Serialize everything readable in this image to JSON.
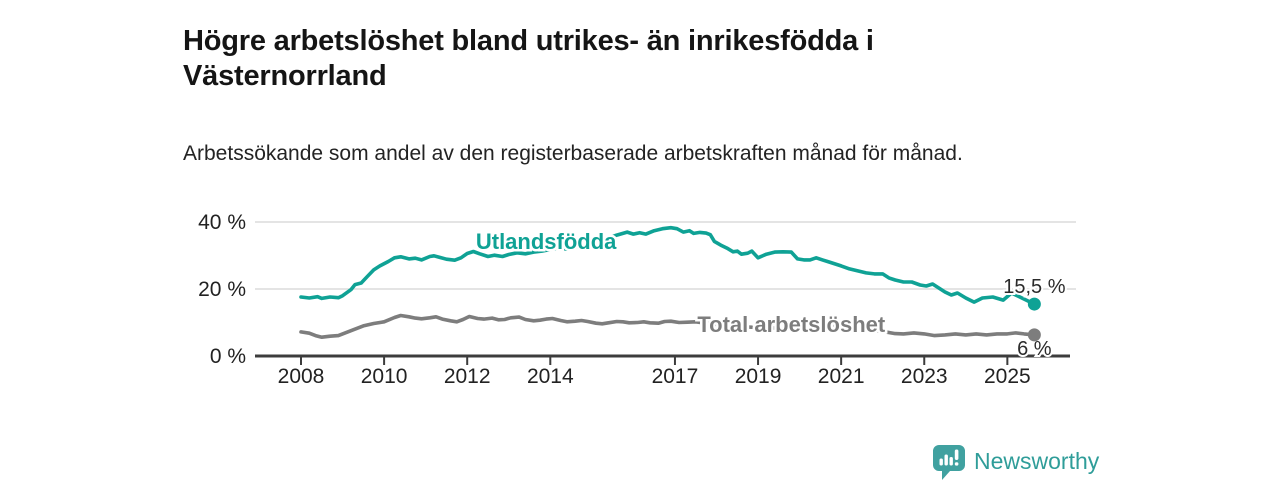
{
  "page": {
    "title": "Högre arbetslöshet bland utrikes- än inrikesfödda i Västernorrland",
    "subtitle": "Arbetssökande som andel av den registerbaserade arbetskraften månad för månad.",
    "background": "#ffffff"
  },
  "branding": {
    "logo_text": "Newsworthy",
    "logo_text_color": "#2f9d99",
    "logo_icon": "bar-chart-speech-bubble-icon",
    "logo_icon_color": "#40a1a0"
  },
  "chart_data": {
    "type": "line",
    "title": "",
    "xlabel": "",
    "ylabel": "",
    "unit": "%",
    "xlim": [
      2007.5,
      2026.5
    ],
    "ylim": [
      0,
      42
    ],
    "grid": "horizontal",
    "grid_color": "#dcdcdc",
    "axis_color": "#3c3c3c",
    "tick_label_color": "#222222",
    "value_label_color": "#2b2b2b",
    "x_ticks": [
      {
        "value": 2008,
        "label": "2008"
      },
      {
        "value": 2010,
        "label": "2010"
      },
      {
        "value": 2012,
        "label": "2012"
      },
      {
        "value": 2014,
        "label": "2014"
      },
      {
        "value": 2017,
        "label": "2017"
      },
      {
        "value": 2019,
        "label": "2019"
      },
      {
        "value": 2021,
        "label": "2021"
      },
      {
        "value": 2023,
        "label": "2023"
      },
      {
        "value": 2025,
        "label": "2025"
      }
    ],
    "y_ticks": [
      {
        "value": 0,
        "label": "0 %"
      },
      {
        "value": 20,
        "label": "20 %"
      },
      {
        "value": 40,
        "label": "40 %"
      }
    ],
    "series": [
      {
        "id": "utlandsfodda",
        "name": "Utlandsfödda",
        "color": "#0fa295",
        "end_label": "15,5 %",
        "end_value": 15.5,
        "end_label_position": "above",
        "label": {
          "x": 2013.9,
          "y": 31.9
        },
        "points": [
          [
            2008.0,
            17.6
          ],
          [
            2008.2,
            17.3
          ],
          [
            2008.4,
            17.7
          ],
          [
            2008.5,
            17.2
          ],
          [
            2008.7,
            17.6
          ],
          [
            2008.9,
            17.4
          ],
          [
            2009.0,
            18.0
          ],
          [
            2009.2,
            19.8
          ],
          [
            2009.3,
            21.3
          ],
          [
            2009.45,
            21.8
          ],
          [
            2009.6,
            23.8
          ],
          [
            2009.75,
            25.7
          ],
          [
            2009.9,
            26.9
          ],
          [
            2010.1,
            28.2
          ],
          [
            2010.25,
            29.3
          ],
          [
            2010.4,
            29.6
          ],
          [
            2010.6,
            29.0
          ],
          [
            2010.75,
            29.2
          ],
          [
            2010.9,
            28.7
          ],
          [
            2011.1,
            29.7
          ],
          [
            2011.2,
            29.9
          ],
          [
            2011.35,
            29.4
          ],
          [
            2011.5,
            28.9
          ],
          [
            2011.7,
            28.6
          ],
          [
            2011.85,
            29.3
          ],
          [
            2012.0,
            30.6
          ],
          [
            2012.15,
            31.2
          ],
          [
            2012.3,
            30.5
          ],
          [
            2012.5,
            29.7
          ],
          [
            2012.65,
            30.1
          ],
          [
            2012.85,
            29.7
          ],
          [
            2013.0,
            30.3
          ],
          [
            2013.2,
            30.8
          ],
          [
            2013.4,
            30.5
          ],
          [
            2013.6,
            31.0
          ],
          [
            2013.8,
            31.3
          ],
          [
            2014.0,
            31.8
          ],
          [
            2014.2,
            32.2
          ],
          [
            2014.4,
            31.9
          ],
          [
            2014.6,
            32.4
          ],
          [
            2014.8,
            33.0
          ],
          [
            2015.0,
            33.9
          ],
          [
            2015.2,
            34.6
          ],
          [
            2015.4,
            35.2
          ],
          [
            2015.6,
            36.1
          ],
          [
            2015.85,
            37.0
          ],
          [
            2016.0,
            36.4
          ],
          [
            2016.15,
            36.8
          ],
          [
            2016.3,
            36.4
          ],
          [
            2016.5,
            37.4
          ],
          [
            2016.7,
            38.0
          ],
          [
            2016.9,
            38.3
          ],
          [
            2017.05,
            38.0
          ],
          [
            2017.2,
            37.0
          ],
          [
            2017.35,
            37.4
          ],
          [
            2017.45,
            36.6
          ],
          [
            2017.6,
            36.9
          ],
          [
            2017.75,
            36.7
          ],
          [
            2017.85,
            36.2
          ],
          [
            2017.95,
            34.2
          ],
          [
            2018.1,
            33.1
          ],
          [
            2018.25,
            32.2
          ],
          [
            2018.4,
            31.1
          ],
          [
            2018.5,
            31.3
          ],
          [
            2018.6,
            30.4
          ],
          [
            2018.75,
            30.7
          ],
          [
            2018.85,
            31.3
          ],
          [
            2019.0,
            29.3
          ],
          [
            2019.2,
            30.4
          ],
          [
            2019.4,
            31.0
          ],
          [
            2019.6,
            31.1
          ],
          [
            2019.8,
            31.0
          ],
          [
            2019.95,
            29.0
          ],
          [
            2020.1,
            28.7
          ],
          [
            2020.25,
            28.7
          ],
          [
            2020.4,
            29.3
          ],
          [
            2020.55,
            28.7
          ],
          [
            2020.7,
            28.1
          ],
          [
            2020.85,
            27.5
          ],
          [
            2021.0,
            26.9
          ],
          [
            2021.2,
            26.0
          ],
          [
            2021.4,
            25.4
          ],
          [
            2021.6,
            24.8
          ],
          [
            2021.8,
            24.5
          ],
          [
            2022.0,
            24.5
          ],
          [
            2022.15,
            23.3
          ],
          [
            2022.3,
            22.7
          ],
          [
            2022.5,
            22.1
          ],
          [
            2022.7,
            22.1
          ],
          [
            2022.9,
            21.2
          ],
          [
            2023.05,
            20.9
          ],
          [
            2023.2,
            21.5
          ],
          [
            2023.35,
            20.3
          ],
          [
            2023.5,
            19.1
          ],
          [
            2023.65,
            18.2
          ],
          [
            2023.8,
            18.8
          ],
          [
            2024.0,
            17.3
          ],
          [
            2024.2,
            16.1
          ],
          [
            2024.4,
            17.3
          ],
          [
            2024.65,
            17.6
          ],
          [
            2024.9,
            16.7
          ],
          [
            2025.1,
            18.8
          ],
          [
            2025.35,
            17.3
          ],
          [
            2025.65,
            15.5
          ]
        ]
      },
      {
        "id": "total-arbetsloshet",
        "name": "Total arbetslöshet",
        "color": "#7d7d7d",
        "end_label": "6 %",
        "end_value": 6,
        "end_label_position": "below",
        "label": {
          "x": 2019.8,
          "y": 7.2
        },
        "points": [
          [
            2008.0,
            7.2
          ],
          [
            2008.2,
            6.8
          ],
          [
            2008.35,
            6.1
          ],
          [
            2008.5,
            5.6
          ],
          [
            2008.7,
            5.9
          ],
          [
            2008.9,
            6.1
          ],
          [
            2009.0,
            6.6
          ],
          [
            2009.25,
            7.8
          ],
          [
            2009.5,
            9.0
          ],
          [
            2009.75,
            9.7
          ],
          [
            2010.0,
            10.2
          ],
          [
            2010.25,
            11.5
          ],
          [
            2010.4,
            12.1
          ],
          [
            2010.6,
            11.7
          ],
          [
            2010.75,
            11.3
          ],
          [
            2010.9,
            11.1
          ],
          [
            2011.1,
            11.4
          ],
          [
            2011.25,
            11.7
          ],
          [
            2011.4,
            11.0
          ],
          [
            2011.6,
            10.5
          ],
          [
            2011.75,
            10.2
          ],
          [
            2011.9,
            10.9
          ],
          [
            2012.05,
            11.8
          ],
          [
            2012.25,
            11.2
          ],
          [
            2012.4,
            11.0
          ],
          [
            2012.6,
            11.3
          ],
          [
            2012.75,
            10.8
          ],
          [
            2012.9,
            10.9
          ],
          [
            2013.05,
            11.4
          ],
          [
            2013.25,
            11.6
          ],
          [
            2013.4,
            10.9
          ],
          [
            2013.6,
            10.5
          ],
          [
            2013.75,
            10.7
          ],
          [
            2013.9,
            11.0
          ],
          [
            2014.05,
            11.2
          ],
          [
            2014.25,
            10.6
          ],
          [
            2014.4,
            10.2
          ],
          [
            2014.6,
            10.4
          ],
          [
            2014.75,
            10.6
          ],
          [
            2014.9,
            10.3
          ],
          [
            2015.1,
            9.8
          ],
          [
            2015.25,
            9.6
          ],
          [
            2015.4,
            9.9
          ],
          [
            2015.6,
            10.3
          ],
          [
            2015.75,
            10.2
          ],
          [
            2015.9,
            9.9
          ],
          [
            2016.1,
            10.0
          ],
          [
            2016.25,
            10.2
          ],
          [
            2016.4,
            9.9
          ],
          [
            2016.6,
            9.8
          ],
          [
            2016.75,
            10.3
          ],
          [
            2016.9,
            10.4
          ],
          [
            2017.1,
            10.0
          ],
          [
            2017.3,
            10.1
          ],
          [
            2017.5,
            10.2
          ],
          [
            2017.75,
            9.8
          ],
          [
            2018.0,
            9.4
          ],
          [
            2018.3,
            9.0
          ],
          [
            2018.7,
            8.7
          ],
          [
            2019.0,
            8.5
          ],
          [
            2019.3,
            8.4
          ],
          [
            2019.7,
            8.3
          ],
          [
            2020.0,
            8.6
          ],
          [
            2020.3,
            9.4
          ],
          [
            2020.6,
            9.6
          ],
          [
            2020.85,
            9.2
          ],
          [
            2021.2,
            8.7
          ],
          [
            2021.5,
            8.2
          ],
          [
            2021.8,
            7.7
          ],
          [
            2022.1,
            7.1
          ],
          [
            2022.3,
            6.7
          ],
          [
            2022.5,
            6.6
          ],
          [
            2022.75,
            6.9
          ],
          [
            2023.0,
            6.6
          ],
          [
            2023.25,
            6.1
          ],
          [
            2023.5,
            6.3
          ],
          [
            2023.75,
            6.6
          ],
          [
            2024.0,
            6.3
          ],
          [
            2024.25,
            6.6
          ],
          [
            2024.5,
            6.3
          ],
          [
            2024.75,
            6.6
          ],
          [
            2025.0,
            6.6
          ],
          [
            2025.2,
            6.9
          ],
          [
            2025.4,
            6.6
          ],
          [
            2025.65,
            6.3
          ]
        ]
      }
    ]
  }
}
